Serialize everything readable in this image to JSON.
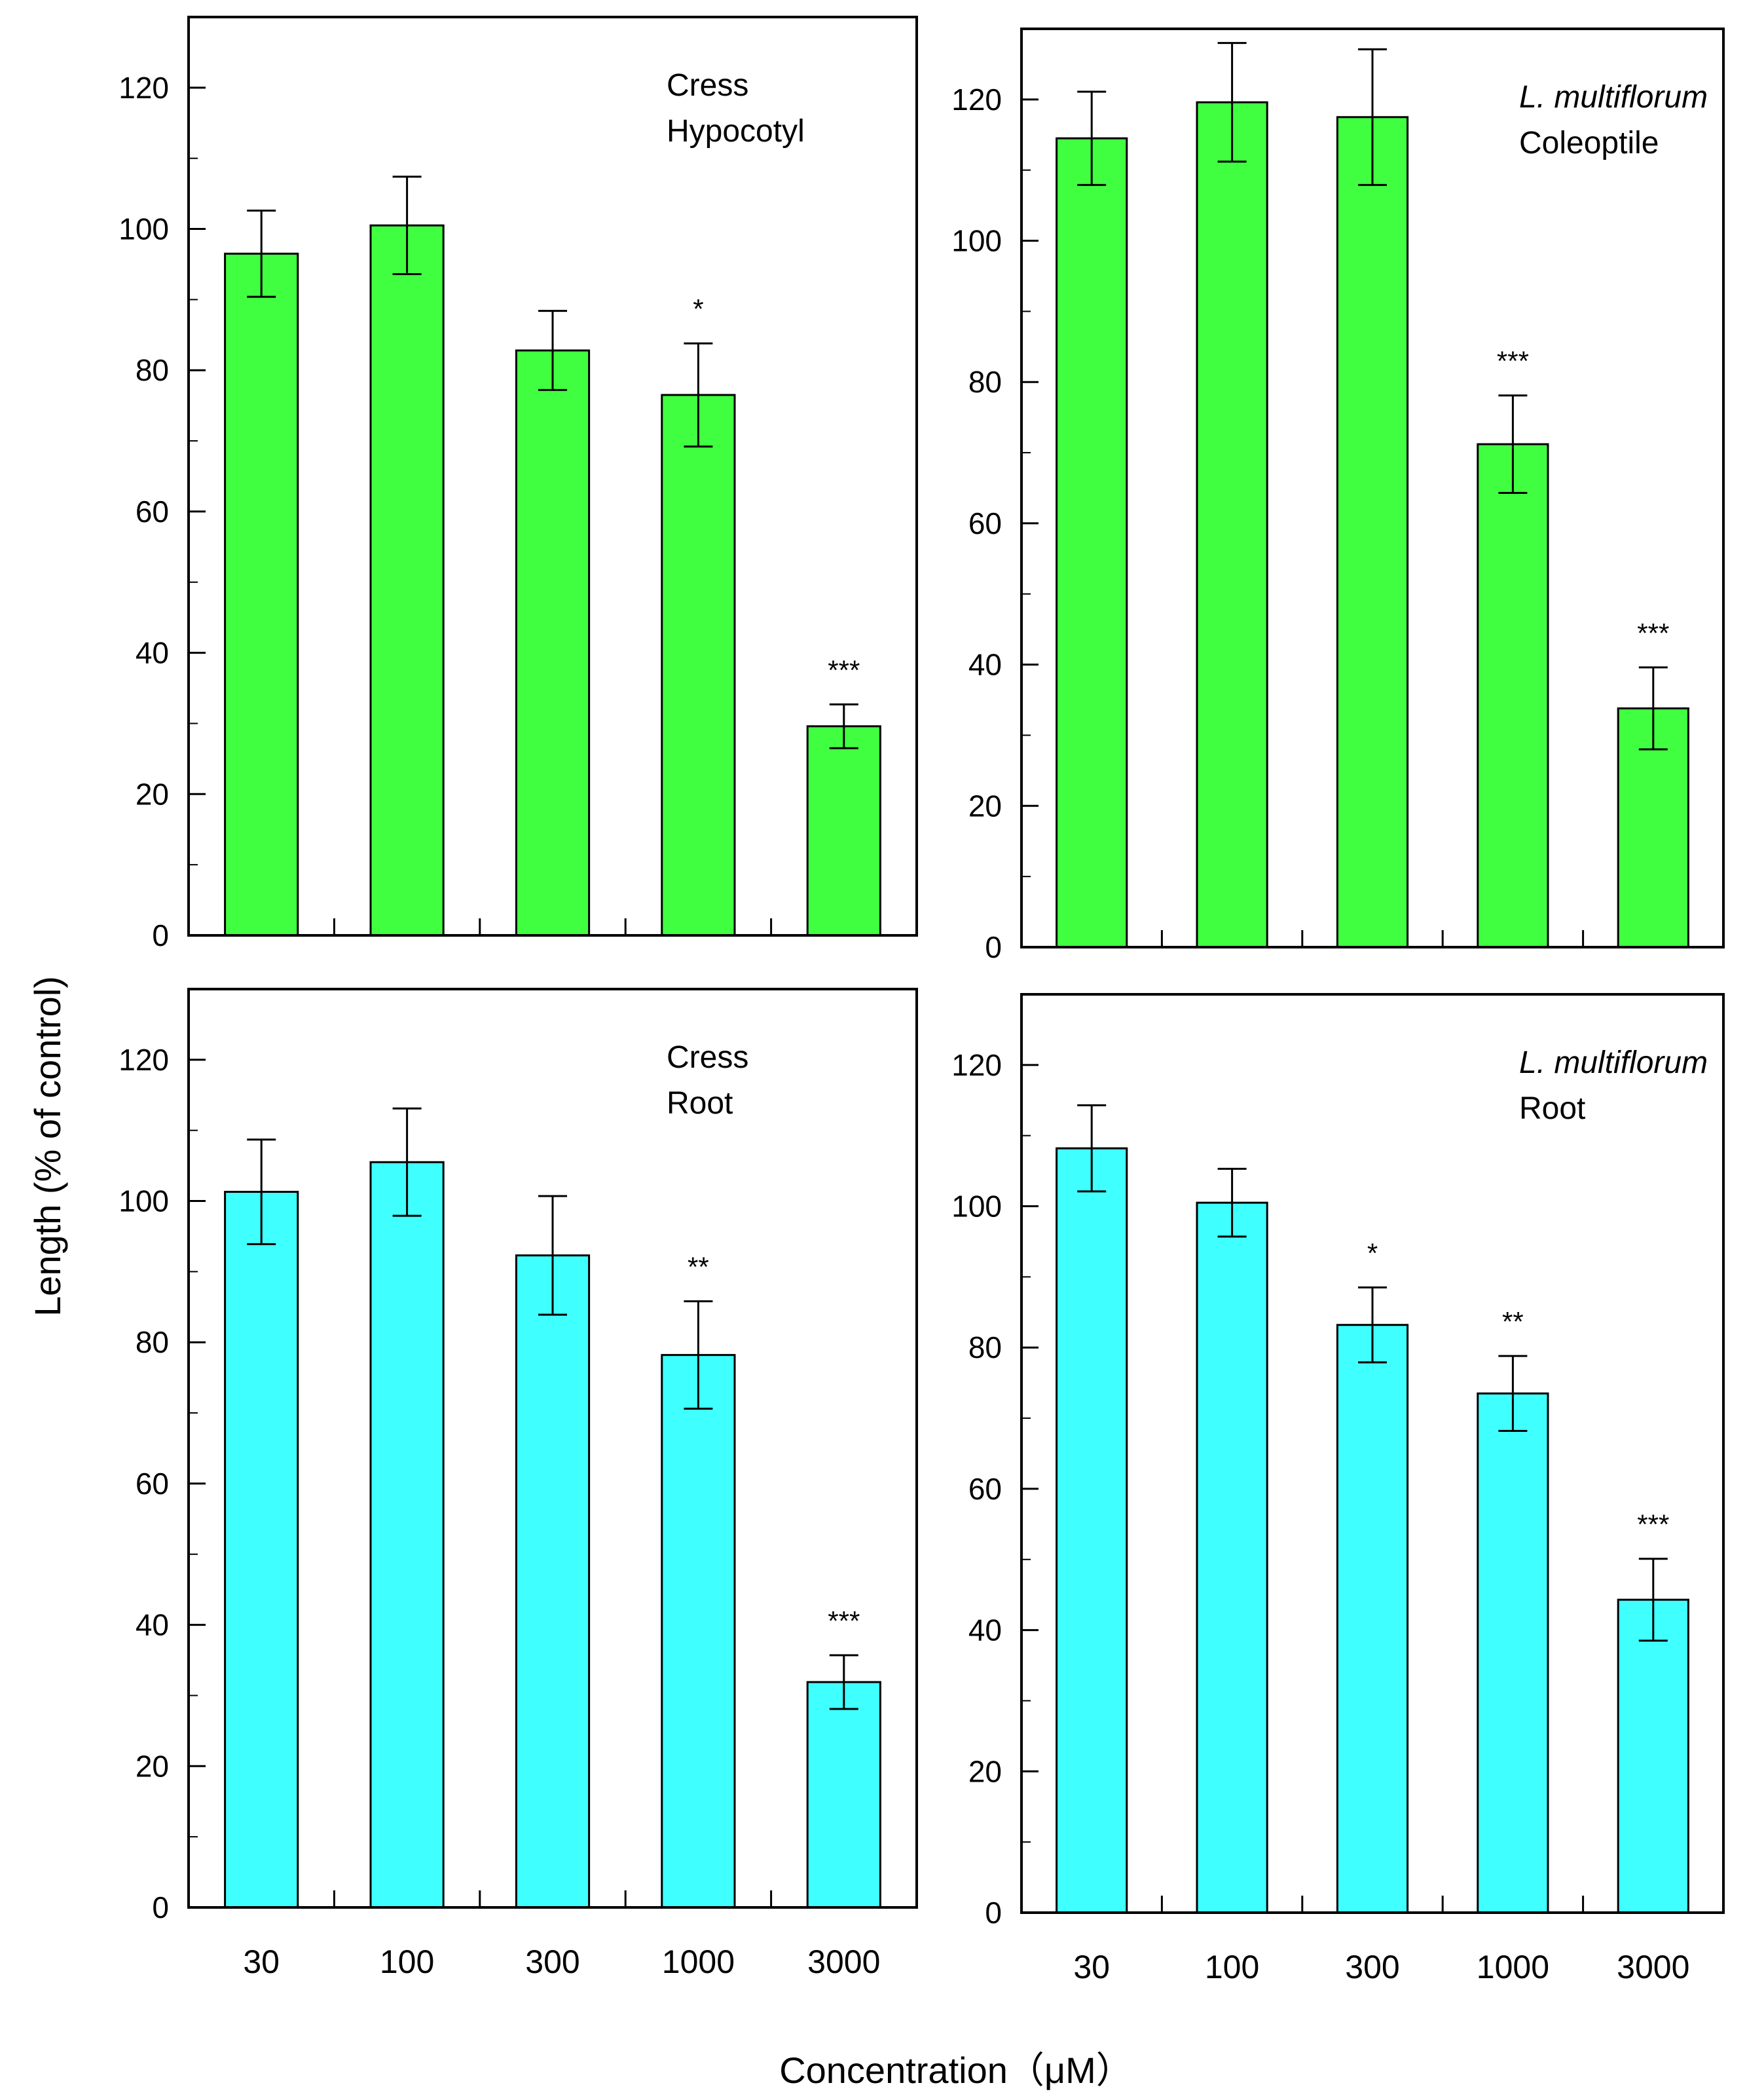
{
  "ylabel": "Length  (% of control)",
  "xlabel": "Concentration（μM）",
  "colors": {
    "shoot_bar": "#40ff40",
    "root_bar": "#40ffff",
    "axis": "#000000"
  },
  "chart_data": [
    {
      "type": "bar",
      "label_line1": "Cress",
      "label_line2": "Hypocotyl",
      "label_italic": false,
      "categories": [
        "30",
        "100",
        "300",
        "1000",
        "3000"
      ],
      "values": [
        96.5,
        100.5,
        82.8,
        76.5,
        29.6
      ],
      "errors": [
        6.1,
        6.9,
        5.6,
        7.3,
        3.1
      ],
      "significance": [
        "",
        "",
        "",
        "*",
        "***"
      ],
      "ylim": [
        0,
        130
      ],
      "yticks": [
        0,
        20,
        40,
        60,
        80,
        100,
        120
      ],
      "grid": false,
      "color": "#40ff40"
    },
    {
      "type": "bar",
      "label_line1": "L. multiflorum",
      "label_line2": "Coleoptile",
      "label_italic": true,
      "categories": [
        "30",
        "100",
        "300",
        "1000",
        "3000"
      ],
      "values": [
        114.5,
        119.6,
        117.5,
        71.2,
        33.8
      ],
      "errors": [
        6.6,
        8.4,
        9.6,
        6.9,
        5.8
      ],
      "significance": [
        "",
        "",
        "",
        "***",
        "***"
      ],
      "ylim": [
        0,
        130
      ],
      "yticks": [
        0,
        20,
        40,
        60,
        80,
        100,
        120
      ],
      "grid": false,
      "color": "#40ff40"
    },
    {
      "type": "bar",
      "label_line1": "Cress",
      "label_line2": "Root",
      "label_italic": false,
      "categories": [
        "30",
        "100",
        "300",
        "1000",
        "3000"
      ],
      "values": [
        101.3,
        105.5,
        92.3,
        78.2,
        31.9
      ],
      "errors": [
        7.4,
        7.6,
        8.4,
        7.6,
        3.8
      ],
      "significance": [
        "",
        "",
        "",
        "**",
        "***"
      ],
      "ylim": [
        0,
        130
      ],
      "yticks": [
        0,
        20,
        40,
        60,
        80,
        100,
        120
      ],
      "grid": false,
      "color": "#40ffff"
    },
    {
      "type": "bar",
      "label_line1": "L. multiflorum",
      "label_line2": "Root",
      "label_italic": true,
      "categories": [
        "30",
        "100",
        "300",
        "1000",
        "3000"
      ],
      "values": [
        108.2,
        100.5,
        83.2,
        73.5,
        44.3
      ],
      "errors": [
        6.1,
        4.8,
        5.3,
        5.3,
        5.8
      ],
      "significance": [
        "",
        "",
        "*",
        "**",
        "***"
      ],
      "ylim": [
        0,
        130
      ],
      "yticks": [
        0,
        20,
        40,
        60,
        80,
        100,
        120
      ],
      "grid": false,
      "color": "#40ffff"
    }
  ]
}
